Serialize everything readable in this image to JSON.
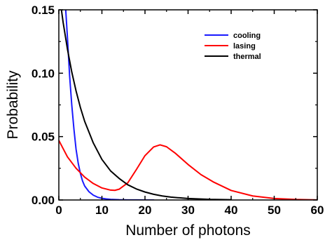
{
  "chart_data": {
    "type": "line",
    "xlabel": "Number of photons",
    "ylabel": "Probability",
    "xlim": [
      0,
      60
    ],
    "ylim": [
      0,
      0.15
    ],
    "xticks": [
      0,
      10,
      20,
      30,
      40,
      50,
      60
    ],
    "yticks": [
      0.0,
      0.05,
      0.1,
      0.15
    ],
    "ytick_labels": [
      "0.00",
      "0.05",
      "0.10",
      "0.15"
    ],
    "grid": false,
    "legend_position": "top-right",
    "series": [
      {
        "name": "cooling",
        "color": "#1a1aff",
        "x": [
          1.6,
          2,
          2.5,
          3,
          3.5,
          4,
          4.5,
          5,
          5.5,
          6,
          7,
          8,
          9,
          10,
          11,
          12,
          14,
          16,
          18,
          20,
          22
        ],
        "y": [
          0.15,
          0.128,
          0.098,
          0.075,
          0.056,
          0.04,
          0.029,
          0.021,
          0.015,
          0.011,
          0.0065,
          0.0038,
          0.0022,
          0.0013,
          0.0008,
          0.0005,
          0.0002,
          0.0001,
          5e-05,
          2e-05,
          0.0
        ]
      },
      {
        "name": "lasing",
        "color": "#ff0000",
        "x": [
          0,
          2,
          4,
          6,
          8,
          10,
          12,
          13,
          14,
          16,
          18,
          20,
          22,
          23.5,
          25,
          27,
          30,
          33,
          36,
          40,
          45,
          50,
          55,
          60
        ],
        "y": [
          0.047,
          0.034,
          0.025,
          0.018,
          0.013,
          0.0095,
          0.0078,
          0.0076,
          0.0085,
          0.0135,
          0.024,
          0.035,
          0.0418,
          0.0435,
          0.042,
          0.037,
          0.028,
          0.02,
          0.014,
          0.0075,
          0.0032,
          0.0012,
          0.0004,
          0.0001
        ]
      },
      {
        "name": "thermal",
        "color": "#000000",
        "x": [
          0.6,
          1,
          2,
          3,
          4,
          5,
          6,
          8,
          10,
          12,
          14,
          16,
          18,
          20,
          22,
          24,
          26,
          28,
          30,
          35,
          40
        ],
        "y": [
          0.15,
          0.14,
          0.119,
          0.101,
          0.086,
          0.073,
          0.062,
          0.045,
          0.032,
          0.023,
          0.017,
          0.012,
          0.0087,
          0.0063,
          0.0045,
          0.0032,
          0.0023,
          0.0017,
          0.0012,
          0.0005,
          0.0002
        ]
      }
    ]
  }
}
